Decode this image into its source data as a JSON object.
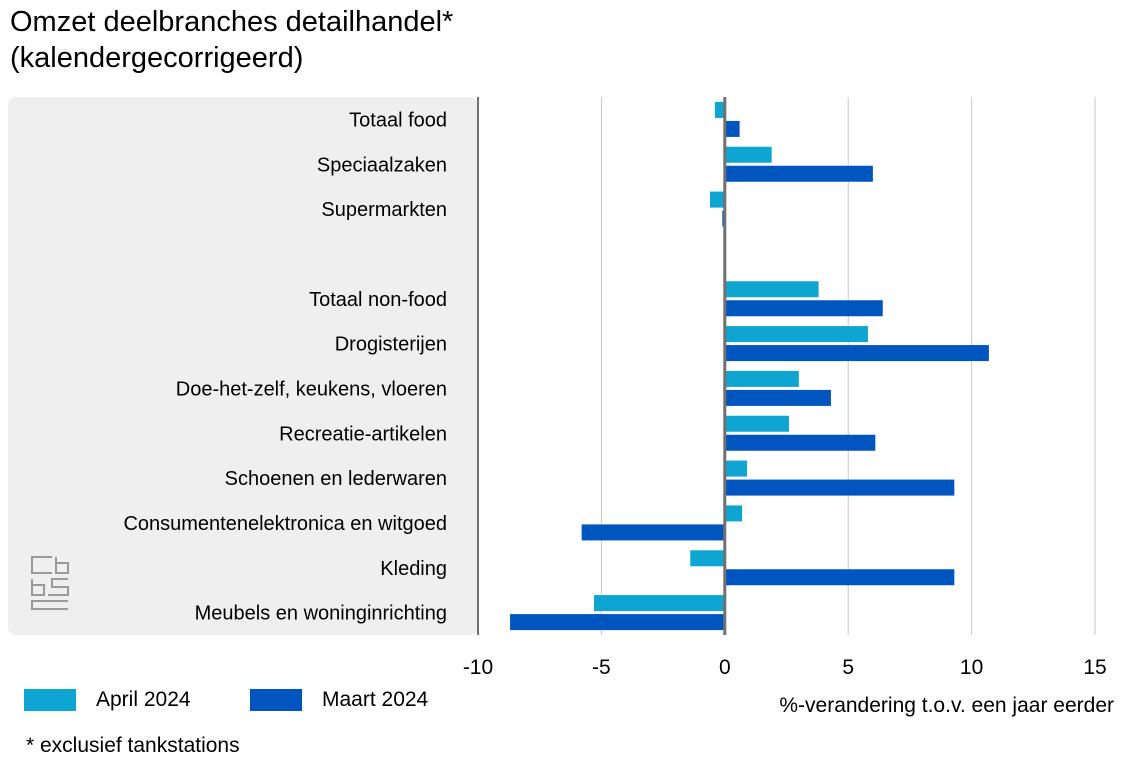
{
  "title_line1": "Omzet deelbranches detailhandel*",
  "title_line2": "(kalendergecorrigeerd)",
  "footnote": "* exclusief tankstations",
  "logo_icon": "cbs-logo-icon",
  "colors": {
    "april": "#0ea5d2",
    "maart": "#0055be",
    "panel": "#efefef",
    "grid": "#c8c8c8",
    "axis": "#707070"
  },
  "chart_data": {
    "type": "bar",
    "orientation": "horizontal",
    "categories": [
      "Totaal food",
      "Speciaalzaken",
      "Supermarkten",
      "",
      "Totaal non-food",
      "Drogisterijen",
      "Doe-het-zelf, keukens, vloeren",
      "Recreatie-artikelen",
      "Schoenen en lederwaren",
      "Consumentenelektronica en witgoed",
      "Kleding",
      "Meubels en woninginrichting"
    ],
    "series": [
      {
        "name": "April 2024",
        "values": [
          -0.4,
          1.9,
          -0.6,
          null,
          3.8,
          5.8,
          3.0,
          2.6,
          0.9,
          0.7,
          -1.4,
          -5.3
        ]
      },
      {
        "name": "Maart 2024",
        "values": [
          0.6,
          6.0,
          -0.1,
          null,
          6.4,
          10.7,
          4.3,
          6.1,
          9.3,
          -5.8,
          9.3,
          -8.7
        ]
      }
    ],
    "xlabel": "%-verandering t.o.v. een jaar eerder",
    "xlim": [
      -10,
      15
    ],
    "xticks": [
      -10,
      -5,
      0,
      5,
      10,
      15
    ],
    "grid": true,
    "legend_position": "bottom-left"
  }
}
